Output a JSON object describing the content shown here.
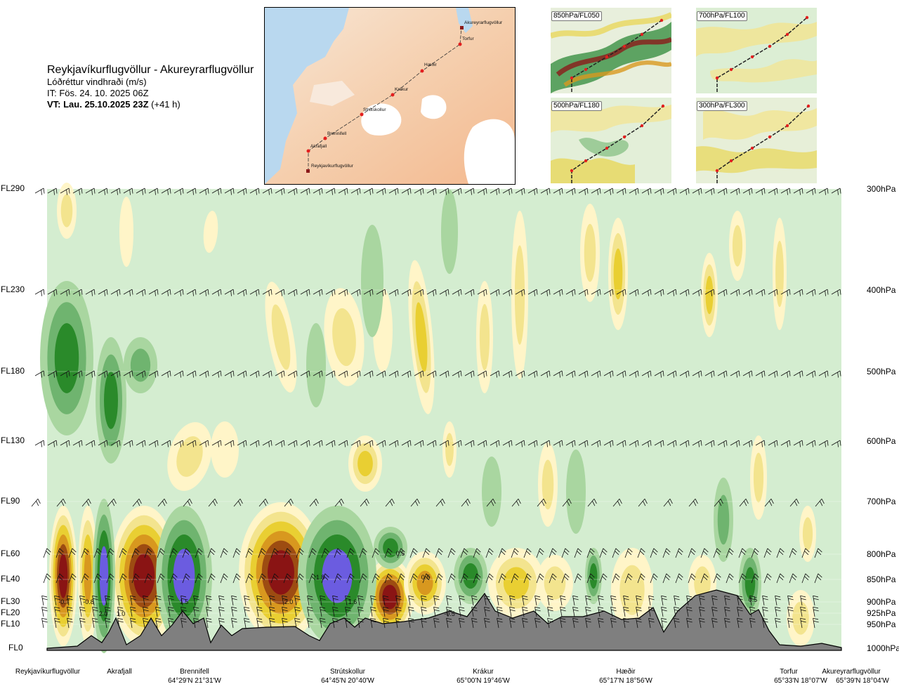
{
  "header": {
    "route": "Reykjavíkurflugvöllur - Akureyrarflugvöllur",
    "parameter": "Lóðréttur vindhraði (m/s)",
    "issue_time": "IT: Fös. 24. 10. 2025 06Z",
    "valid_prefix": "VT: Lau. 25.10.2025 23Z",
    "valid_suffix": "(+41 h)"
  },
  "map": {
    "labels": [
      "Akureyrarflugvöllur",
      "Torfur",
      "Hæðir",
      "Krákur",
      "Strútskollur",
      "Brennifell",
      "Akrafjall",
      "Reykjavíkurflugvöllur"
    ]
  },
  "insets": [
    {
      "label": "850hPa/FL050"
    },
    {
      "label": "700hPa/FL100"
    },
    {
      "label": "500hPa/FL180"
    },
    {
      "label": "300hPa/FL300"
    }
  ],
  "chart_data": {
    "type": "heatmap",
    "title": "Reykjavíkurflugvöllur - Akureyrarflugvöllur",
    "subtitle": "Lóðréttur vindhraði (m/s)",
    "y_left_ticks": [
      "FL290",
      "FL230",
      "FL180",
      "FL130",
      "FL90",
      "FL60",
      "FL40",
      "FL30",
      "FL20",
      "FL10",
      "FL0"
    ],
    "y_right_ticks": [
      "300hPa",
      "400hPa",
      "500hPa",
      "600hPa",
      "700hPa",
      "800hPa",
      "850hPa",
      "900hPa",
      "925hPa",
      "950hPa",
      "1000hPa"
    ],
    "pressure_levels_hpa": [
      300,
      400,
      500,
      600,
      700,
      800,
      850,
      900,
      925,
      950,
      1000
    ],
    "waypoints": [
      {
        "name": "Reykjavíkurflugvöllur",
        "coord": ""
      },
      {
        "name": "Akrafjall",
        "coord": ""
      },
      {
        "name": "Brennifell",
        "coord": "64°29'N 21°31'W"
      },
      {
        "name": "Strútskollur",
        "coord": "64°45'N 20°40'W"
      },
      {
        "name": "Krákur",
        "coord": "65°00'N 19°46'W"
      },
      {
        "name": "Hæðir",
        "coord": "65°17'N 18°56'W"
      },
      {
        "name": "Torfur",
        "coord": "65°33'N 18°07'W"
      },
      {
        "name": "Akureyrarflugvöllur",
        "coord": "65°39'N 18°04'W"
      }
    ],
    "contour_labels": [
      "-0.7",
      "-0.8",
      "2.0",
      "1.0",
      "1.5",
      "2.0",
      "1.8",
      "1.6",
      "0.5",
      "0.5",
      "-0.5",
      "0.5"
    ],
    "colors": {
      "strong_down": "#2a8a2a",
      "down": "#6fb46f",
      "weak_down": "#a9d6a0",
      "neutral": "#d4edd0",
      "weak_up": "#fff5c8",
      "up": "#f3e48e",
      "moderate_up": "#e9cf32",
      "strong_up": "#d8981f",
      "very_strong_up": "#9d4c12",
      "extreme_up": "#8a1414",
      "extreme_down": "#6b5ce0",
      "terrain": "#7f7f7f"
    }
  }
}
